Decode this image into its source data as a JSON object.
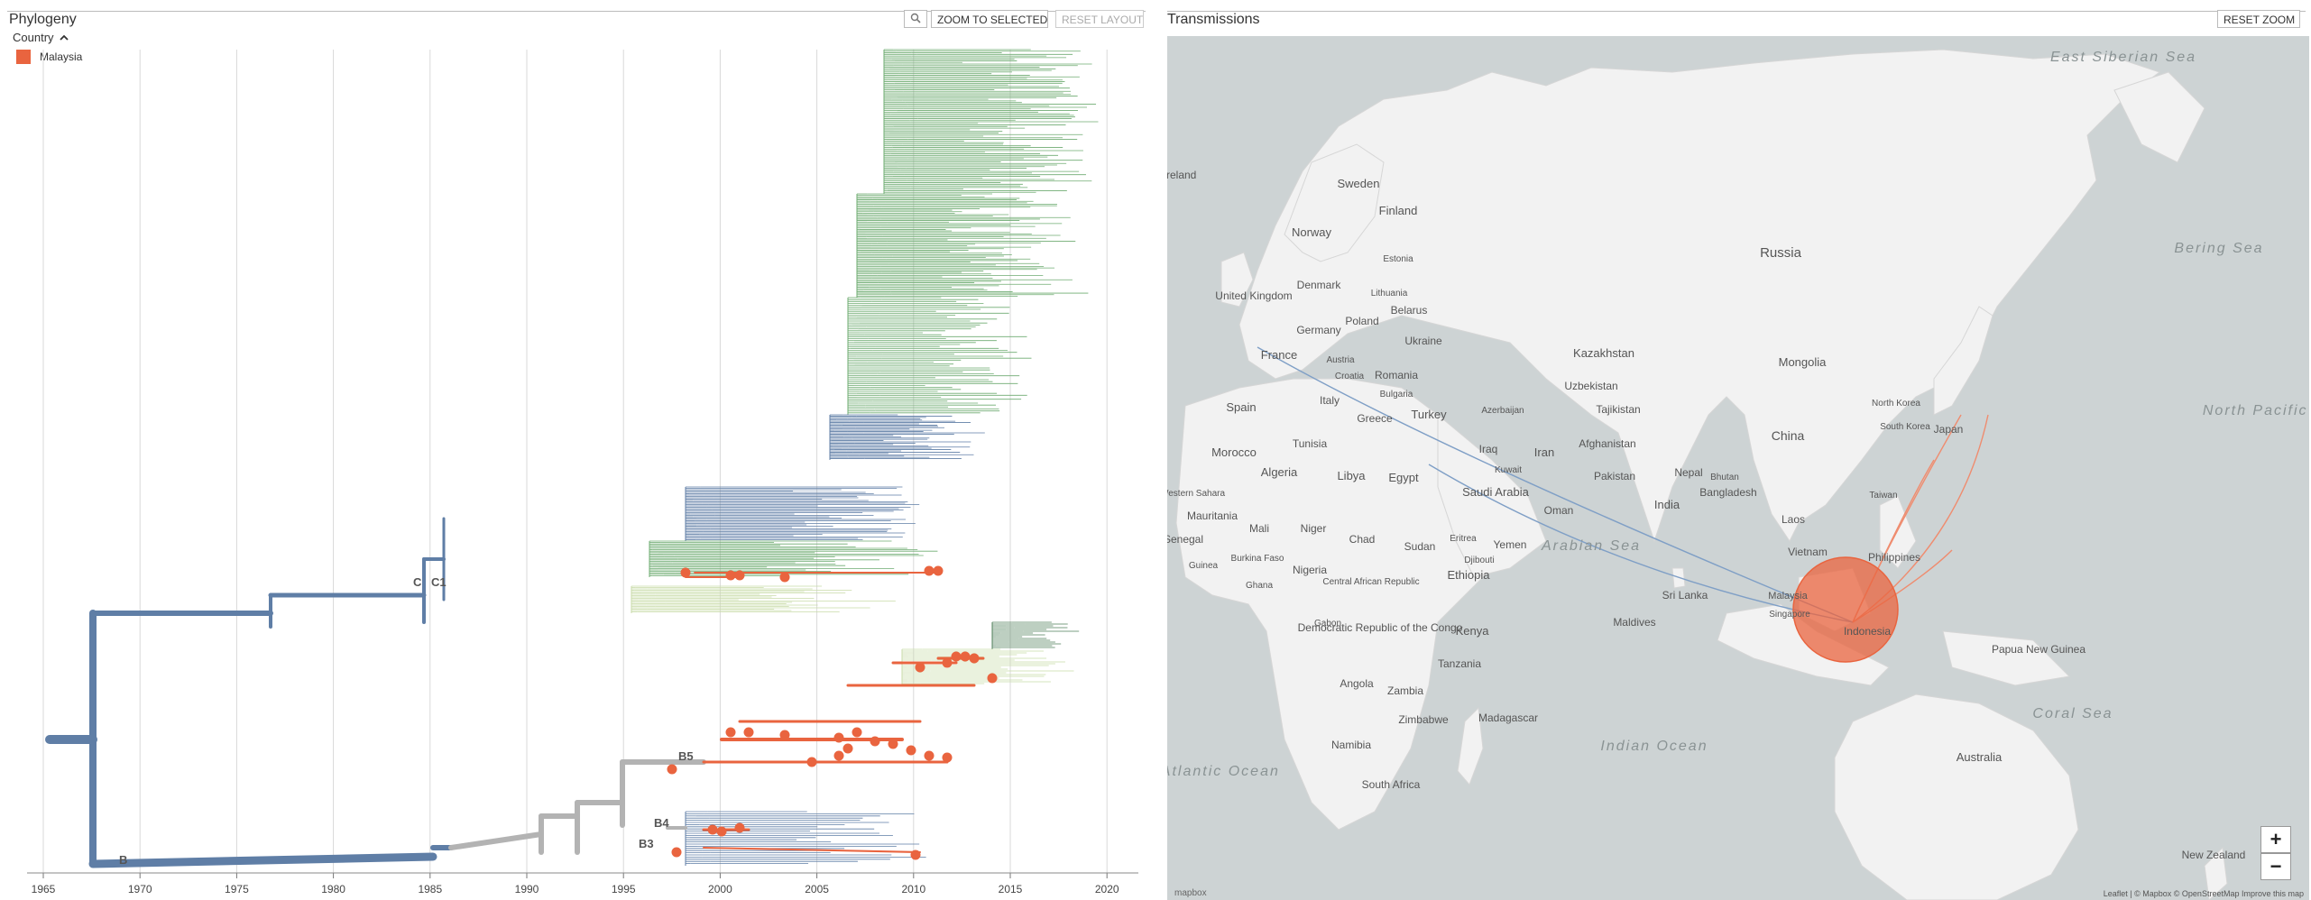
{
  "phylogeny": {
    "title": "Phylogeny",
    "search_icon": "magnifier-icon",
    "zoom_selected_label": "ZOOM TO SELECTED",
    "reset_layout_label": "RESET LAYOUT",
    "legend": {
      "title": "Country",
      "toggle_icon": "chevron-up-icon",
      "items": [
        {
          "label": "Malaysia",
          "color": "#e9643f"
        }
      ]
    },
    "axis_years": [
      "1965",
      "1970",
      "1975",
      "1980",
      "1985",
      "1990",
      "1995",
      "2000",
      "2005",
      "2010",
      "2015",
      "2020"
    ],
    "clade_labels": [
      "B",
      "C",
      "C1",
      "B5",
      "B4",
      "B3"
    ],
    "colors": {
      "highlight": "#e9643f",
      "blue": "#5f7ea6",
      "green": "#6fac72",
      "gray": "#b3b3b3"
    }
  },
  "map": {
    "title": "Transmissions",
    "reset_zoom_label": "RESET ZOOM",
    "zoom_in_label": "+",
    "zoom_out_label": "−",
    "attribution": "Leaflet | © Mapbox © OpenStreetMap Improve this map",
    "logo_text": "mapbox",
    "countries": [
      "Russia",
      "Sweden",
      "Finland",
      "Norway",
      "Estonia",
      "Denmark",
      "United Kingdom",
      "Lithuania",
      "Belarus",
      "Poland",
      "Germany",
      "Ukraine",
      "Kazakhstan",
      "Mongolia",
      "France",
      "Austria",
      "Croatia",
      "Romania",
      "Bulgaria",
      "Italy",
      "Uzbekistan",
      "Spain",
      "Greece",
      "Turkey",
      "Azerbaijan",
      "Tajikistan",
      "North Korea",
      "South Korea",
      "Japan",
      "China",
      "Morocco",
      "Tunisia",
      "Afghanistan",
      "Iran",
      "Iraq",
      "Kuwait",
      "Pakistan",
      "Nepal",
      "Bhutan",
      "Algeria",
      "Libya",
      "Egypt",
      "Saudi Arabia",
      "Oman",
      "India",
      "Bangladesh",
      "Laos",
      "Taiwan",
      "Mauritania",
      "Mali",
      "Niger",
      "Chad",
      "Sudan",
      "Yemen",
      "Eritrea",
      "Djibouti",
      "Vietnam",
      "Philippines",
      "Senegal",
      "Guinea",
      "Burkina Faso",
      "Ghana",
      "Nigeria",
      "Central African Republic",
      "Ethiopia",
      "Sri Lanka",
      "Maldives",
      "Malaysia",
      "Singapore",
      "Indonesia",
      "Gabon",
      "Democratic Republic of the Congo",
      "Kenya",
      "Tanzania",
      "Papua New Guinea",
      "Angola",
      "Zambia",
      "Zimbabwe",
      "Madagascar",
      "Namibia",
      "South Africa",
      "Australia",
      "New Zealand",
      "Western Sahara",
      "Ireland"
    ],
    "seas": [
      "Bering Sea",
      "East Siberian Sea",
      "North Pacific Ocean",
      "Arabian Sea",
      "Coral Sea",
      "Indian Ocean",
      "South Atlantic Ocean"
    ],
    "marker": {
      "country": "Malaysia",
      "color": "#e9643f"
    }
  }
}
